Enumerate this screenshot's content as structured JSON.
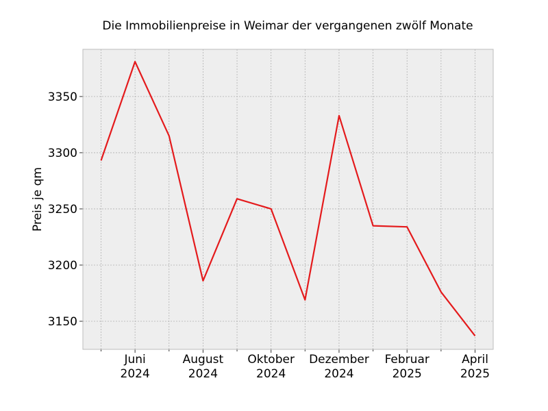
{
  "chart_data": {
    "type": "line",
    "title": "Die Immobilienpreise in Weimar der vergangenen zwölf Monate",
    "xlabel": "",
    "ylabel": "Preis je qm",
    "x": [
      "2024-05",
      "2024-06",
      "2024-07",
      "2024-08",
      "2024-09",
      "2024-10",
      "2024-11",
      "2024-12",
      "2025-01",
      "2025-02",
      "2025-03",
      "2025-04"
    ],
    "series": [
      {
        "values": [
          3293,
          3381,
          3315,
          3186,
          3259,
          3250,
          3169,
          3333,
          3235,
          3234,
          3176,
          3137
        ]
      }
    ],
    "x_tick_labels": [
      {
        "x": "2024-06",
        "line1": "Juni",
        "line2": "2024"
      },
      {
        "x": "2024-08",
        "line1": "August",
        "line2": "2024"
      },
      {
        "x": "2024-10",
        "line1": "Oktober",
        "line2": "2024"
      },
      {
        "x": "2024-12",
        "line1": "Dezember",
        "line2": "2024"
      },
      {
        "x": "2025-02",
        "line1": "Februar",
        "line2": "2025"
      },
      {
        "x": "2025-04",
        "line1": "April",
        "line2": "2025"
      }
    ],
    "yticks": [
      3150,
      3200,
      3250,
      3300,
      3350
    ],
    "ylim": [
      3125,
      3392
    ],
    "grid": true,
    "colors": {
      "line": "#e41a1c",
      "plot_background": "#eeeeee",
      "grid": "#b0b0b0",
      "frame": "#bcbcbc"
    }
  }
}
